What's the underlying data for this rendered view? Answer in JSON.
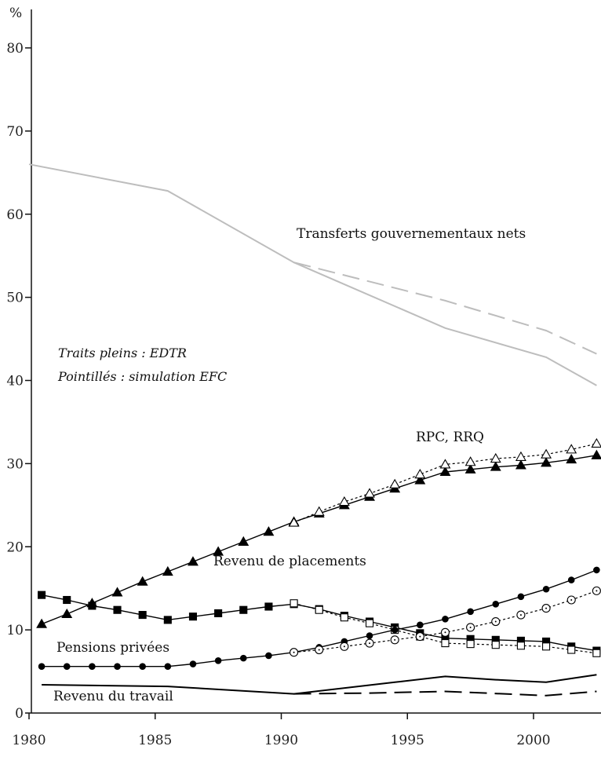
{
  "chart_data": {
    "type": "line",
    "ylabel": "%",
    "xlim": [
      1980,
      2002.7
    ],
    "ylim": [
      0,
      85
    ],
    "x_ticks": [
      1980,
      1985,
      1990,
      1995,
      2000
    ],
    "y_ticks": [
      0,
      10,
      20,
      30,
      40,
      50,
      60,
      70,
      80
    ],
    "grid": false,
    "notes": [
      "Traits pleins : EDTR",
      "Pointillés : simulation EFC"
    ],
    "series": [
      {
        "name": "Transferts gouvernementaux nets",
        "style": "solid",
        "color": "#bdbdbd",
        "marker": "none",
        "x": [
          1980,
          1985.5,
          1990.5,
          1996.5,
          2000.5,
          2002.5
        ],
        "values": [
          66.0,
          62.8,
          54.2,
          46.3,
          42.8,
          39.4
        ]
      },
      {
        "name": "Transferts gouvernementaux nets",
        "style": "dashed",
        "color": "#bdbdbd",
        "marker": "none",
        "x": [
          1990.5,
          1996.5,
          2000.5,
          2002.5
        ],
        "values": [
          54.2,
          49.6,
          46.0,
          43.2
        ]
      },
      {
        "name": "RPC, RRQ",
        "style": "solid",
        "color": "#000000",
        "marker": "filled-triangle",
        "x": [
          1980.5,
          1981.5,
          1982.5,
          1983.5,
          1984.5,
          1985.5,
          1986.5,
          1987.5,
          1988.5,
          1989.5,
          1990.5,
          1991.5,
          1992.5,
          1993.5,
          1994.5,
          1995.5,
          1996.5,
          1997.5,
          1998.5,
          1999.5,
          2000.5,
          2001.5,
          2002.5
        ],
        "values": [
          10.7,
          11.9,
          13.2,
          14.5,
          15.8,
          17.0,
          18.2,
          19.4,
          20.6,
          21.8,
          23.0,
          24.0,
          25.0,
          26.0,
          27.0,
          28.0,
          29.0,
          29.3,
          29.6,
          29.8,
          30.1,
          30.5,
          31.0
        ]
      },
      {
        "name": "RPC, RRQ",
        "style": "dotted",
        "color": "#000000",
        "marker": "open-triangle",
        "x": [
          1990.5,
          1991.5,
          1992.5,
          1993.5,
          1994.5,
          1995.5,
          1996.5,
          1997.5,
          1998.5,
          1999.5,
          2000.5,
          2001.5,
          2002.5
        ],
        "values": [
          22.9,
          24.2,
          25.4,
          26.4,
          27.5,
          28.7,
          29.9,
          30.2,
          30.6,
          30.8,
          31.1,
          31.7,
          32.4
        ]
      },
      {
        "name": "Revenu de placements",
        "style": "solid",
        "color": "#000000",
        "marker": "filled-square",
        "x": [
          1980.5,
          1981.5,
          1982.5,
          1983.5,
          1984.5,
          1985.5,
          1986.5,
          1987.5,
          1988.5,
          1989.5,
          1990.5,
          1991.5,
          1992.5,
          1993.5,
          1994.5,
          1995.5,
          1996.5,
          1997.5,
          1998.5,
          1999.5,
          2000.5,
          2001.5,
          2002.5
        ],
        "values": [
          14.2,
          13.6,
          12.9,
          12.4,
          11.8,
          11.2,
          11.6,
          12.0,
          12.4,
          12.8,
          13.1,
          12.5,
          11.7,
          11.0,
          10.3,
          9.6,
          9.0,
          8.9,
          8.8,
          8.7,
          8.6,
          8.0,
          7.5
        ]
      },
      {
        "name": "Revenu de placements",
        "style": "dotted",
        "color": "#000000",
        "marker": "open-square",
        "x": [
          1990.5,
          1991.5,
          1992.5,
          1993.5,
          1994.5,
          1995.5,
          1996.5,
          1997.5,
          1998.5,
          1999.5,
          2000.5,
          2001.5,
          2002.5
        ],
        "values": [
          13.2,
          12.4,
          11.5,
          10.8,
          10.0,
          9.2,
          8.4,
          8.3,
          8.2,
          8.1,
          8.0,
          7.6,
          7.2
        ]
      },
      {
        "name": "Pensions privées",
        "style": "solid",
        "color": "#000000",
        "marker": "filled-circle",
        "x": [
          1980.5,
          1981.5,
          1982.5,
          1983.5,
          1984.5,
          1985.5,
          1986.5,
          1987.5,
          1988.5,
          1989.5,
          1990.5,
          1991.5,
          1992.5,
          1993.5,
          1994.5,
          1995.5,
          1996.5,
          1997.5,
          1998.5,
          1999.5,
          2000.5,
          2001.5,
          2002.5
        ],
        "values": [
          5.6,
          5.6,
          5.6,
          5.6,
          5.6,
          5.6,
          5.9,
          6.3,
          6.6,
          6.9,
          7.3,
          7.9,
          8.6,
          9.3,
          10.0,
          10.6,
          11.3,
          12.2,
          13.1,
          14.0,
          14.9,
          16.0,
          17.2
        ]
      },
      {
        "name": "Pensions privées",
        "style": "dotted",
        "color": "#000000",
        "marker": "open-circle",
        "x": [
          1990.5,
          1991.5,
          1992.5,
          1993.5,
          1994.5,
          1995.5,
          1996.5,
          1997.5,
          1998.5,
          1999.5,
          2000.5,
          2001.5,
          2002.5
        ],
        "values": [
          7.3,
          7.6,
          8.0,
          8.4,
          8.8,
          9.2,
          9.7,
          10.3,
          11.0,
          11.8,
          12.6,
          13.6,
          14.7
        ]
      },
      {
        "name": "Revenu du travail",
        "style": "solid",
        "color": "#000000",
        "marker": "none",
        "x": [
          1980.5,
          1985.5,
          1990.5,
          1994.5,
          1996.5,
          1998.5,
          2000.5,
          2002.5
        ],
        "values": [
          3.4,
          3.2,
          2.3,
          3.7,
          4.4,
          4.0,
          3.7,
          4.6
        ]
      },
      {
        "name": "Revenu du travail",
        "style": "dashed",
        "color": "#000000",
        "marker": "none",
        "x": [
          1990.5,
          1993.5,
          1996.5,
          2000.5,
          2002.5
        ],
        "values": [
          2.3,
          2.4,
          2.6,
          2.1,
          2.6
        ]
      }
    ],
    "labels": [
      "Transferts gouvernementaux nets",
      "RPC, RRQ",
      "Revenu de placements",
      "Pensions privées",
      "Revenu du travail"
    ]
  }
}
